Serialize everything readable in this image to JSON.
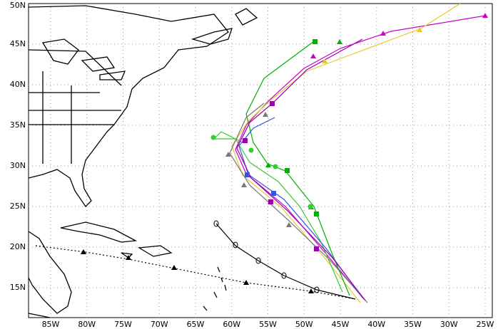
{
  "map": {
    "lat_labels": [
      "50N",
      "45N",
      "40N",
      "35N",
      "30N",
      "25N",
      "20N",
      "15N"
    ],
    "lon_labels": [
      "85W",
      "80W",
      "75W",
      "70W",
      "65W",
      "60W",
      "55W",
      "50W",
      "45W",
      "40W",
      "35W",
      "30W",
      "25W"
    ]
  }
}
